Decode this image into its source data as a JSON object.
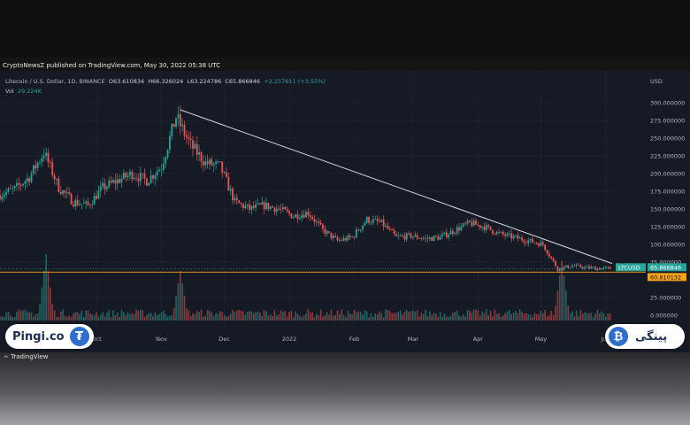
{
  "header": {
    "publish_line": "CryptoNewsZ published on TradingView.com, May 30, 2022 05:38 UTC"
  },
  "legend": {
    "symbol": "Litecoin / U.S. Dollar, 1D, BINANCE",
    "open": "O63.610834",
    "high": "H66.326024",
    "low": "L63.224786",
    "close": "C65.866846",
    "change": "+2.257611 (+3.55%)",
    "vol_label": "Vol",
    "vol_value": "29.224K"
  },
  "price_axis": {
    "currency": "USD",
    "ticks": [
      "300.000000",
      "275.000000",
      "250.000000",
      "225.000000",
      "200.000000",
      "175.000000",
      "150.000000",
      "125.000000",
      "100.000000",
      "75.000000",
      "25.000000",
      "0.000000"
    ],
    "symbol_tag": "LTCUSD",
    "last_price": "65.866846",
    "support_label": "60.810132"
  },
  "time_axis": {
    "labels": [
      "Oct",
      "Nov",
      "Dec",
      "2022",
      "Feb",
      "Mar",
      "Apr",
      "May",
      "Jun"
    ]
  },
  "colors": {
    "up": "#26a69a",
    "down": "#ef5350",
    "trendline": "#d9dbe0",
    "support_line": "#f7a21b",
    "background": "#161a25"
  },
  "chart_data": {
    "type": "candlestick",
    "ylim": [
      0,
      310
    ],
    "trendline": [
      {
        "date": "2021-11-10",
        "price": 290
      },
      {
        "date": "2022-06-04",
        "price": 73
      }
    ],
    "support_level": 60.810132,
    "weekly_closes": [
      {
        "date": "2021-08-16",
        "price": 170
      },
      {
        "date": "2021-08-23",
        "price": 178
      },
      {
        "date": "2021-08-30",
        "price": 195
      },
      {
        "date": "2021-09-06",
        "price": 230
      },
      {
        "date": "2021-09-13",
        "price": 180
      },
      {
        "date": "2021-09-20",
        "price": 160
      },
      {
        "date": "2021-09-27",
        "price": 155
      },
      {
        "date": "2021-10-04",
        "price": 180
      },
      {
        "date": "2021-10-11",
        "price": 190
      },
      {
        "date": "2021-10-18",
        "price": 200
      },
      {
        "date": "2021-10-25",
        "price": 190
      },
      {
        "date": "2021-11-01",
        "price": 210
      },
      {
        "date": "2021-11-08",
        "price": 280
      },
      {
        "date": "2021-11-15",
        "price": 240
      },
      {
        "date": "2021-11-22",
        "price": 215
      },
      {
        "date": "2021-11-29",
        "price": 210
      },
      {
        "date": "2021-12-06",
        "price": 160
      },
      {
        "date": "2021-12-13",
        "price": 150
      },
      {
        "date": "2021-12-20",
        "price": 155
      },
      {
        "date": "2021-12-27",
        "price": 150
      },
      {
        "date": "2022-01-03",
        "price": 140
      },
      {
        "date": "2022-01-10",
        "price": 145
      },
      {
        "date": "2022-01-17",
        "price": 120
      },
      {
        "date": "2022-01-24",
        "price": 105
      },
      {
        "date": "2022-01-31",
        "price": 110
      },
      {
        "date": "2022-02-07",
        "price": 135
      },
      {
        "date": "2022-02-14",
        "price": 130
      },
      {
        "date": "2022-02-21",
        "price": 110
      },
      {
        "date": "2022-02-28",
        "price": 112
      },
      {
        "date": "2022-03-07",
        "price": 108
      },
      {
        "date": "2022-03-14",
        "price": 110
      },
      {
        "date": "2022-03-21",
        "price": 120
      },
      {
        "date": "2022-03-28",
        "price": 130
      },
      {
        "date": "2022-04-04",
        "price": 125
      },
      {
        "date": "2022-04-11",
        "price": 115
      },
      {
        "date": "2022-04-18",
        "price": 110
      },
      {
        "date": "2022-04-25",
        "price": 105
      },
      {
        "date": "2022-05-02",
        "price": 100
      },
      {
        "date": "2022-05-09",
        "price": 65
      },
      {
        "date": "2022-05-16",
        "price": 70
      },
      {
        "date": "2022-05-23",
        "price": 67
      },
      {
        "date": "2022-05-30",
        "price": 66
      }
    ],
    "volume_spikes": [
      {
        "date": "2021-09-07",
        "value": 1.0
      },
      {
        "date": "2021-11-10",
        "value": 0.75
      },
      {
        "date": "2022-05-11",
        "value": 0.9
      }
    ]
  },
  "branding": {
    "left_site": "Pingi.co",
    "left_coin": "₮",
    "right_coin": "₿",
    "right_site": "پینگی",
    "tradingview": "TradingView"
  }
}
